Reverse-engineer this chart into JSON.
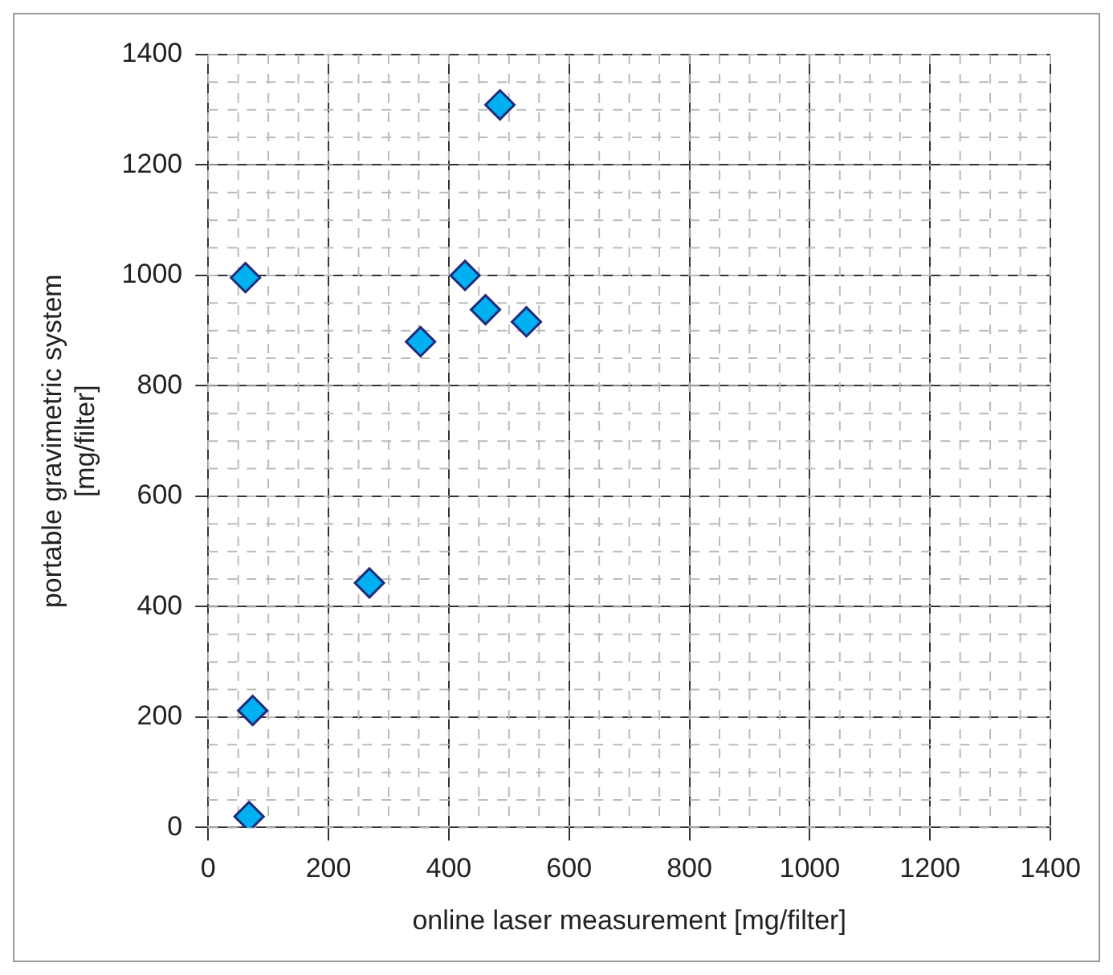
{
  "chart_data": {
    "type": "scatter",
    "xlabel": "online laser measurement [mg/filter]",
    "ylabel": [
      "portable gravimetric system",
      "[mg/filter]"
    ],
    "series": [
      {
        "color": "#00b0f0",
        "x": [
          485,
          62,
          427,
          461,
          529,
          353,
          268,
          74,
          68
        ],
        "values": [
          1309,
          996,
          1000,
          938,
          916,
          880,
          443,
          212,
          20
        ]
      }
    ],
    "xlim": [
      0,
      1400
    ],
    "xticks": [
      0,
      200,
      400,
      600,
      800,
      1000,
      1200,
      1400
    ],
    "ylim": [
      0,
      1400
    ],
    "yticks": [
      0,
      200,
      400,
      600,
      800,
      1000,
      1200,
      1400
    ],
    "grid": true,
    "legend": false,
    "marker": "diamond"
  }
}
